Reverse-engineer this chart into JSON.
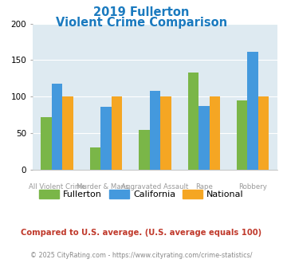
{
  "title_line1": "2019 Fullerton",
  "title_line2": "Violent Crime Comparison",
  "title_color": "#1a7abf",
  "categories": [
    "All Violent Crime",
    "Murder & Mans...",
    "Aggravated Assault",
    "Rape",
    "Robbery"
  ],
  "top_labels": [
    "",
    "Murder & Mans...",
    "",
    "Rape",
    ""
  ],
  "bot_labels": [
    "All Violent Crime",
    "",
    "Aggravated Assault",
    "",
    "Robbery"
  ],
  "fullerton": [
    72,
    30,
    54,
    133,
    95
  ],
  "california": [
    118,
    86,
    108,
    87,
    161
  ],
  "national": [
    100,
    100,
    100,
    100,
    100
  ],
  "fullerton_color": "#7ab648",
  "california_color": "#4499dd",
  "national_color": "#f5a623",
  "ylim": [
    0,
    200
  ],
  "yticks": [
    0,
    50,
    100,
    150,
    200
  ],
  "plot_bg": "#deeaf1",
  "footer_text": "© 2025 CityRating.com - https://www.cityrating.com/crime-statistics/",
  "compare_text": "Compared to U.S. average. (U.S. average equals 100)",
  "compare_color": "#c0392b",
  "footer_color": "#888888",
  "label_color": "#999999"
}
